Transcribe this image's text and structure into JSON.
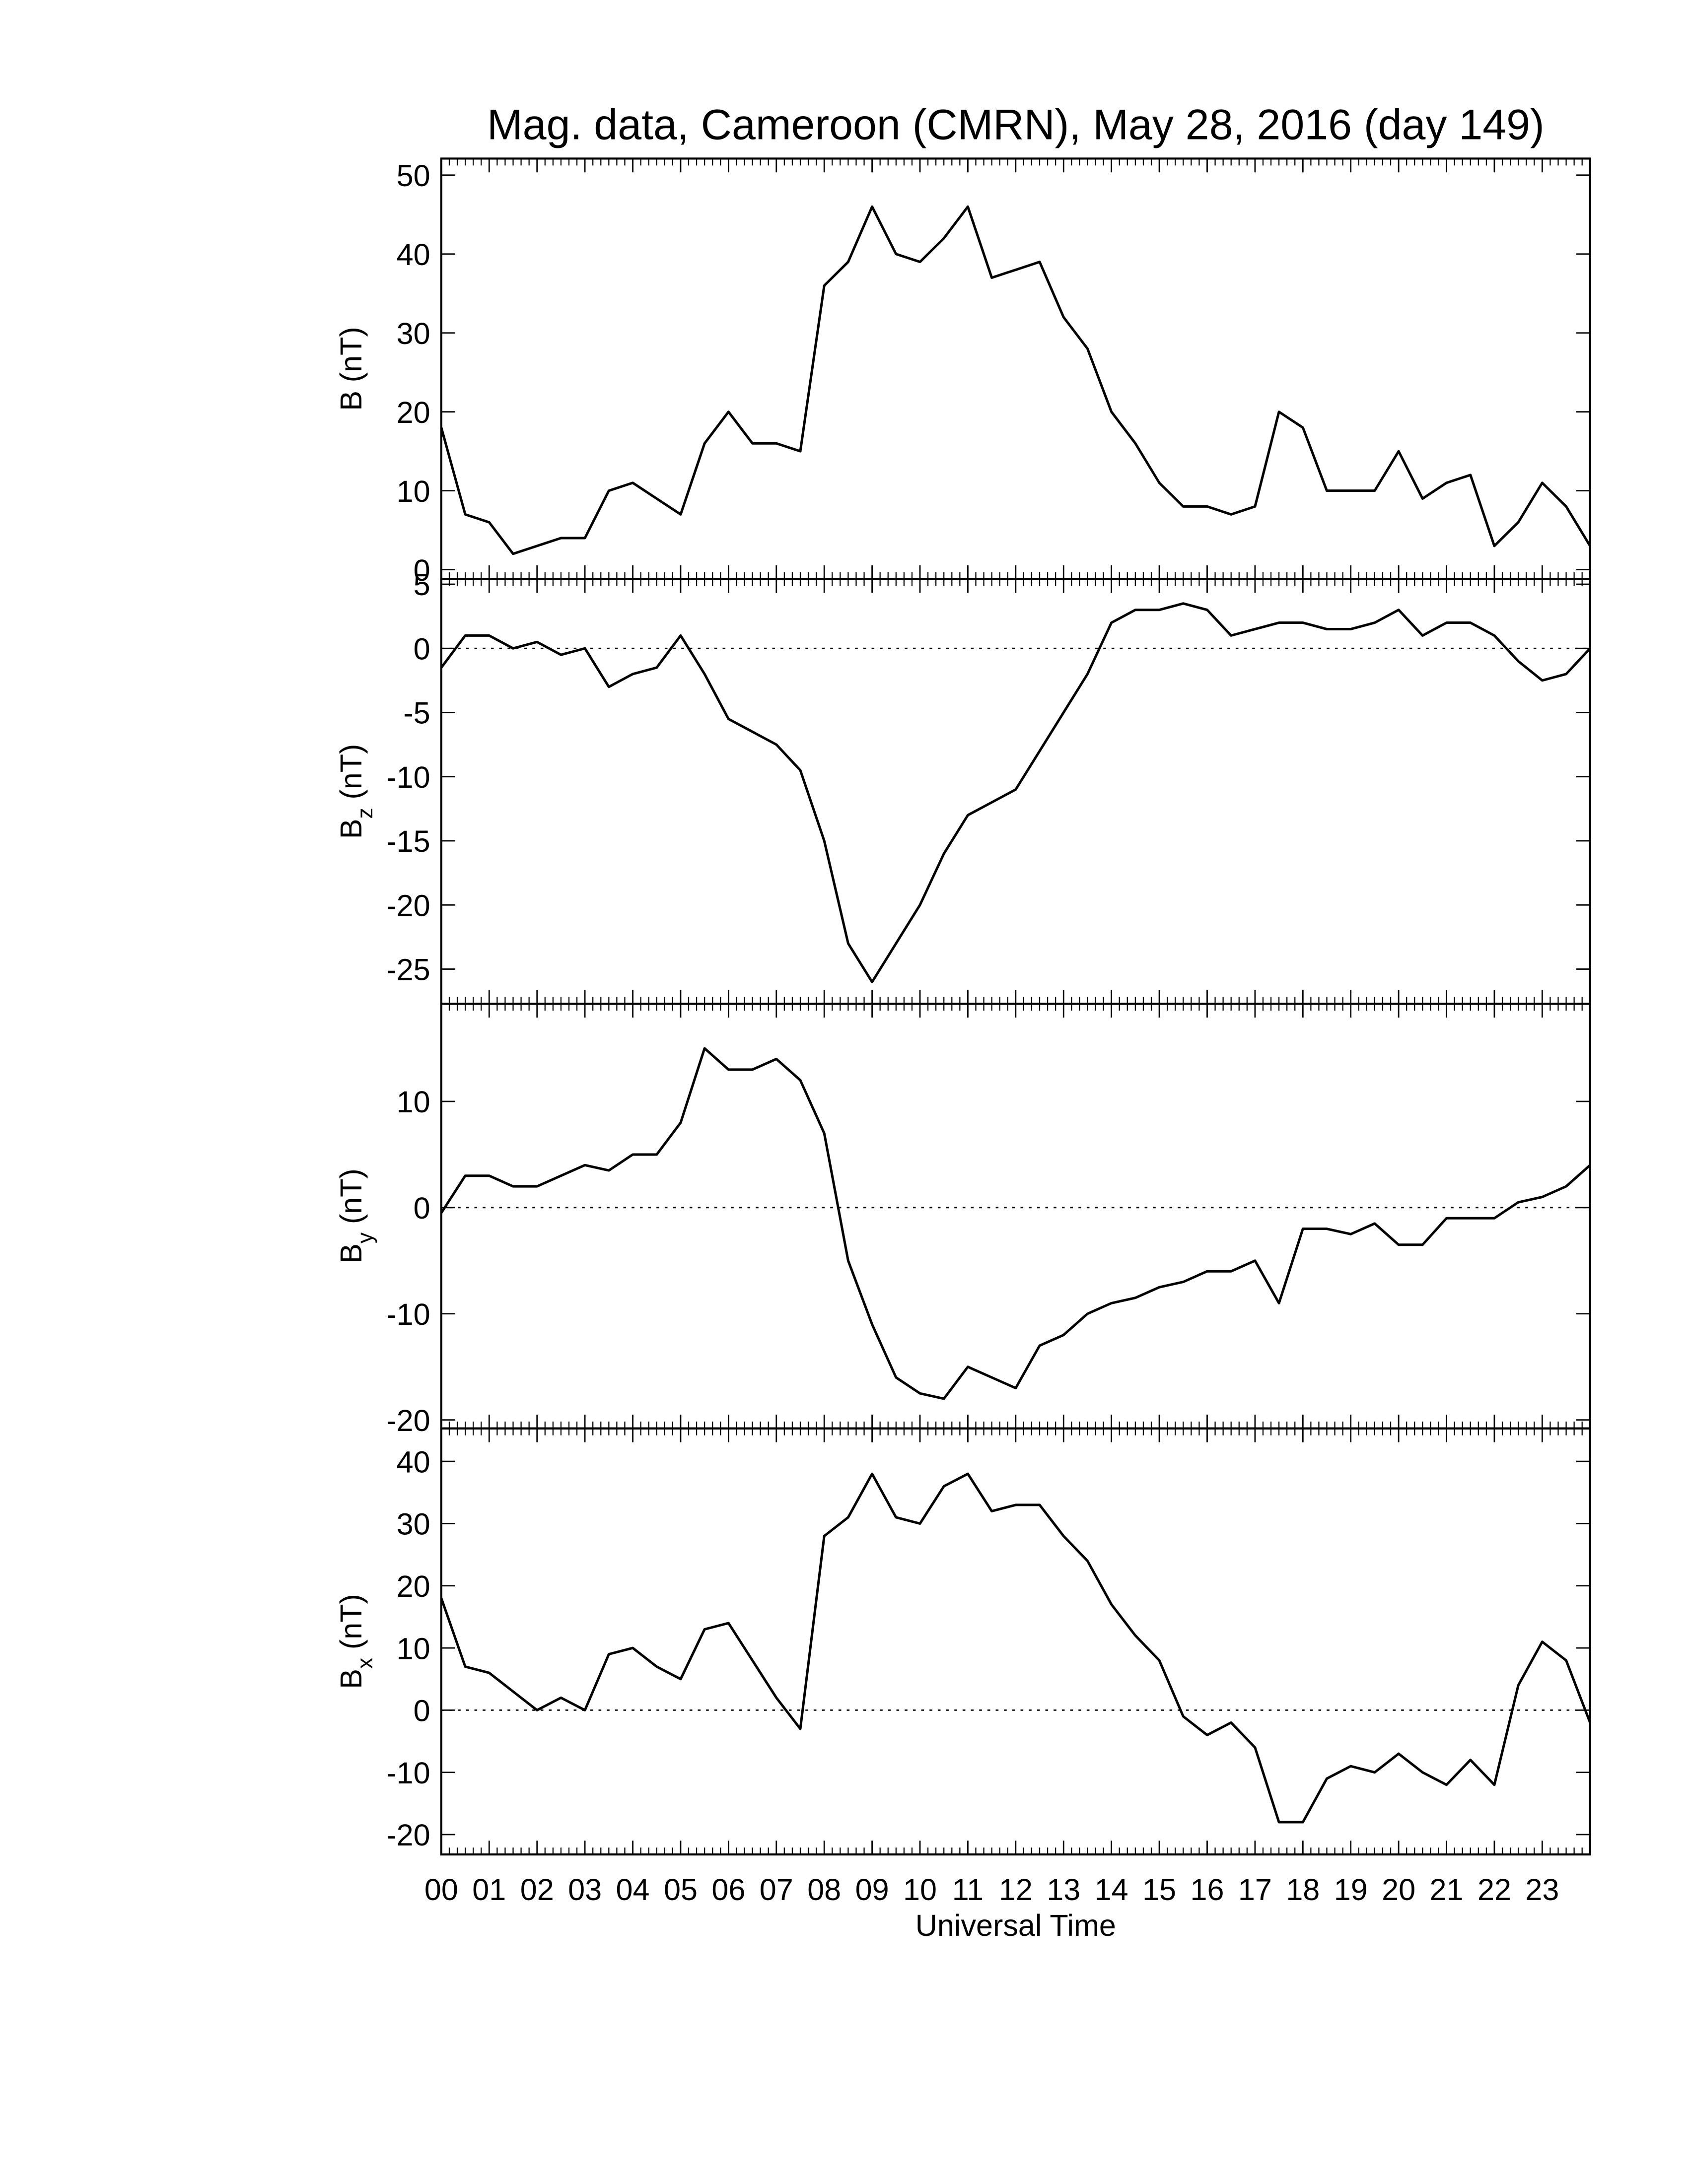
{
  "chart_data": [
    {
      "type": "line",
      "title": "Mag. data, Cameroon (CMRN), May 28, 2016 (day 149)",
      "ylabel": "B",
      "ylabel_unit": "(nT)",
      "color": "#000000",
      "x": [
        0,
        0.5,
        1,
        1.5,
        2,
        2.5,
        3,
        3.5,
        4,
        4.5,
        5,
        5.5,
        6,
        6.5,
        7,
        7.5,
        8,
        8.5,
        9,
        9.5,
        10,
        10.5,
        11,
        11.5,
        12,
        12.5,
        13,
        13.5,
        14,
        14.5,
        15,
        15.5,
        16,
        16.5,
        17,
        17.5,
        18,
        18.5,
        19,
        19.5,
        20,
        20.5,
        21,
        21.5,
        22,
        22.5,
        23,
        23.5,
        24
      ],
      "values": [
        18,
        7,
        6,
        2,
        3,
        4,
        4,
        10,
        11,
        9,
        7,
        16,
        20,
        16,
        16,
        15,
        36,
        39,
        46,
        40,
        39,
        42,
        46,
        37,
        38,
        39,
        32,
        28,
        20,
        16,
        11,
        8,
        8,
        7,
        8,
        20,
        18,
        10,
        10,
        10,
        15,
        9,
        11,
        12,
        3,
        6,
        11,
        8,
        3
      ],
      "xlim": [
        0,
        24
      ],
      "ylim": [
        -1.2,
        52.1
      ],
      "yticks": [
        0,
        10,
        20,
        30,
        40,
        50
      ],
      "zero_line": false
    },
    {
      "type": "line",
      "ylabel": "B",
      "ylabel_sub": "z",
      "ylabel_unit": "(nT)",
      "color": "#000000",
      "x": [
        0,
        0.5,
        1,
        1.5,
        2,
        2.5,
        3,
        3.5,
        4,
        4.5,
        5,
        5.5,
        6,
        6.5,
        7,
        7.5,
        8,
        8.5,
        9,
        9.5,
        10,
        10.5,
        11,
        11.5,
        12,
        12.5,
        13,
        13.5,
        14,
        14.5,
        15,
        15.5,
        16,
        16.5,
        17,
        17.5,
        18,
        18.5,
        19,
        19.5,
        20,
        20.5,
        21,
        21.5,
        22,
        22.5,
        23,
        23.5,
        24
      ],
      "values": [
        -1.5,
        1,
        1,
        0,
        0.5,
        -0.5,
        0,
        -3,
        -2,
        -1.5,
        1,
        -2,
        -5.5,
        -6.5,
        -7.5,
        -9.5,
        -15,
        -23,
        -26,
        -23,
        -20,
        -16,
        -13,
        -12,
        -11,
        -8,
        -5,
        -2,
        2,
        3,
        3,
        3.5,
        3,
        1,
        1.5,
        2,
        2,
        1.5,
        1.5,
        2,
        3,
        1,
        2,
        2,
        1,
        -1,
        -2.5,
        -2,
        0
      ],
      "xlim": [
        0,
        24
      ],
      "ylim": [
        -27.7,
        5.4
      ],
      "yticks": [
        -25,
        -20,
        -15,
        -10,
        -5,
        0,
        5
      ],
      "zero_line": true
    },
    {
      "type": "line",
      "ylabel": "B",
      "ylabel_sub": "y",
      "ylabel_unit": "(nT)",
      "color": "#000000",
      "x": [
        0,
        0.5,
        1,
        1.5,
        2,
        2.5,
        3,
        3.5,
        4,
        4.5,
        5,
        5.5,
        6,
        6.5,
        7,
        7.5,
        8,
        8.5,
        9,
        9.5,
        10,
        10.5,
        11,
        11.5,
        12,
        12.5,
        13,
        13.5,
        14,
        14.5,
        15,
        15.5,
        16,
        16.5,
        17,
        17.5,
        18,
        18.5,
        19,
        19.5,
        20,
        20.5,
        21,
        21.5,
        22,
        22.5,
        23,
        23.5,
        24
      ],
      "values": [
        -0.5,
        3,
        3,
        2,
        2,
        3,
        4,
        3.5,
        5,
        5,
        8,
        15,
        13,
        13,
        14,
        12,
        7,
        -5,
        -11,
        -16,
        -17.5,
        -18,
        -15,
        -16,
        -17,
        -13,
        -12,
        -10,
        -9,
        -8.5,
        -7.5,
        -7,
        -6,
        -6,
        -5,
        -9,
        -2,
        -2,
        -2.5,
        -1.5,
        -3.5,
        -3.5,
        -1,
        -1,
        -1,
        0.5,
        1,
        2,
        4
      ],
      "xlim": [
        0,
        24
      ],
      "ylim": [
        -20.8,
        19.2
      ],
      "yticks": [
        -20,
        -10,
        0,
        10
      ],
      "zero_line": true
    },
    {
      "type": "line",
      "ylabel": "B",
      "ylabel_sub": "x",
      "ylabel_unit": "(nT)",
      "xlabel": "Universal Time",
      "color": "#000000",
      "x": [
        0,
        0.5,
        1,
        1.5,
        2,
        2.5,
        3,
        3.5,
        4,
        4.5,
        5,
        5.5,
        6,
        6.5,
        7,
        7.5,
        8,
        8.5,
        9,
        9.5,
        10,
        10.5,
        11,
        11.5,
        12,
        12.5,
        13,
        13.5,
        14,
        14.5,
        15,
        15.5,
        16,
        16.5,
        17,
        17.5,
        18,
        18.5,
        19,
        19.5,
        20,
        20.5,
        21,
        21.5,
        22,
        22.5,
        23,
        23.5,
        24
      ],
      "values": [
        18,
        7,
        6,
        3,
        0,
        2,
        0,
        9,
        10,
        7,
        5,
        13,
        14,
        8,
        2,
        -3,
        28,
        31,
        38,
        31,
        30,
        36,
        38,
        32,
        33,
        33,
        28,
        24,
        17,
        12,
        8,
        -1,
        -4,
        -2,
        -6,
        -18,
        -18,
        -11,
        -9,
        -10,
        -7,
        -10,
        -12,
        -8,
        -12,
        4,
        11,
        8,
        -2
      ],
      "xlim": [
        0,
        24
      ],
      "ylim": [
        -23.2,
        45.3
      ],
      "yticks": [
        -20,
        -10,
        0,
        10,
        20,
        30,
        40
      ],
      "zero_line": true,
      "xticks": [
        {
          "value": 0,
          "label": "00"
        },
        {
          "value": 1,
          "label": "01"
        },
        {
          "value": 2,
          "label": "02"
        },
        {
          "value": 3,
          "label": "03"
        },
        {
          "value": 4,
          "label": "04"
        },
        {
          "value": 5,
          "label": "05"
        },
        {
          "value": 6,
          "label": "06"
        },
        {
          "value": 7,
          "label": "07"
        },
        {
          "value": 8,
          "label": "08"
        },
        {
          "value": 9,
          "label": "09"
        },
        {
          "value": 10,
          "label": "10"
        },
        {
          "value": 11,
          "label": "11"
        },
        {
          "value": 12,
          "label": "12"
        },
        {
          "value": 13,
          "label": "13"
        },
        {
          "value": 14,
          "label": "14"
        },
        {
          "value": 15,
          "label": "15"
        },
        {
          "value": 16,
          "label": "16"
        },
        {
          "value": 17,
          "label": "17"
        },
        {
          "value": 18,
          "label": "18"
        },
        {
          "value": 19,
          "label": "19"
        },
        {
          "value": 20,
          "label": "20"
        },
        {
          "value": 21,
          "label": "21"
        },
        {
          "value": 22,
          "label": "22"
        },
        {
          "value": 23,
          "label": "23"
        }
      ]
    }
  ]
}
